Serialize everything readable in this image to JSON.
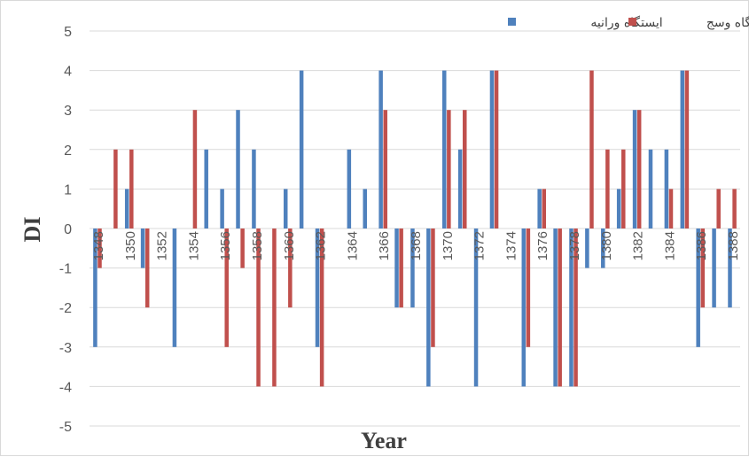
{
  "chart_data": {
    "type": "bar",
    "title": "",
    "xlabel": "Year",
    "ylabel": "DI",
    "ylim": [
      -5,
      5
    ],
    "yticks": [
      5,
      4,
      3,
      2,
      1,
      0,
      -1,
      -2,
      -3,
      -4,
      -5
    ],
    "grid": true,
    "legend_position": "top-right",
    "categories": [
      "1348",
      "1349",
      "1350",
      "1351",
      "1352",
      "1353",
      "1354",
      "1355",
      "1356",
      "1357",
      "1358",
      "1359",
      "1360",
      "1361",
      "1362",
      "1363",
      "1364",
      "1365",
      "1366",
      "1367",
      "1368",
      "1369",
      "1370",
      "1371",
      "1372",
      "1373",
      "1374",
      "1375",
      "1376",
      "1377",
      "1378",
      "1379",
      "1380",
      "1381",
      "1382",
      "1383",
      "1384",
      "1385",
      "1386",
      "1387",
      "1388"
    ],
    "tick_labels": [
      "1348",
      "1350",
      "1352",
      "1354",
      "1356",
      "1358",
      "1360",
      "1362",
      "1364",
      "1366",
      "1368",
      "1370",
      "1372",
      "1374",
      "1376",
      "1378",
      "1380",
      "1382",
      "1384",
      "1386",
      "1388"
    ],
    "series": [
      {
        "name": "ایستگاه ورانیه",
        "color": "#4f81bd",
        "values": [
          -3,
          0,
          1,
          -1,
          0,
          -3,
          0,
          2,
          1,
          3,
          2,
          0,
          1,
          4,
          -3,
          0,
          2,
          1,
          4,
          -2,
          -2,
          -4,
          4,
          2,
          -4,
          4,
          0,
          -4,
          1,
          -4,
          -4,
          -1,
          -1,
          1,
          3,
          2,
          2,
          4,
          -3,
          -2,
          -2
        ]
      },
      {
        "name": "ایستگاه وسج",
        "color": "#c0504d",
        "values": [
          -1,
          2,
          2,
          -2,
          0,
          0,
          3,
          0,
          -3,
          -1,
          -4,
          -4,
          -2,
          0,
          -4,
          0,
          0,
          0,
          3,
          -2,
          0,
          -3,
          3,
          3,
          0,
          4,
          0,
          -3,
          1,
          -4,
          -4,
          4,
          2,
          2,
          3,
          0,
          1,
          4,
          -2,
          1,
          1
        ]
      }
    ]
  }
}
